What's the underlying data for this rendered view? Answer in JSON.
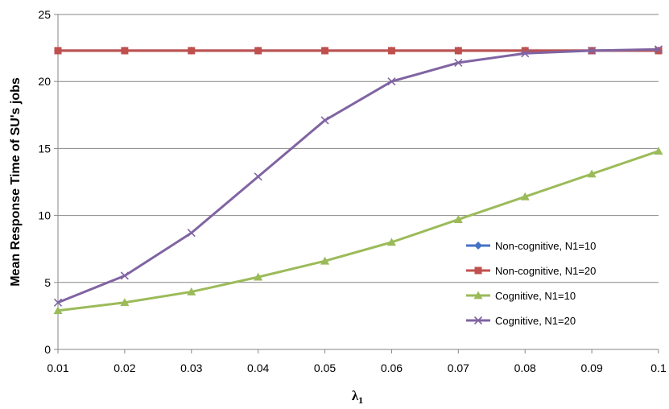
{
  "chart_data": {
    "type": "line",
    "title": "",
    "xlabel": "λ",
    "xlabel_subscript": "1",
    "ylabel": "Mean Response Time of SU's jobs",
    "ylim": [
      0,
      25
    ],
    "yticks": [
      0,
      5,
      10,
      15,
      20,
      25
    ],
    "x": [
      0.01,
      0.02,
      0.03,
      0.04,
      0.05,
      0.06,
      0.07,
      0.08,
      0.09,
      0.1
    ],
    "x_labels": [
      "0.01",
      "0.02",
      "0.03",
      "0.04",
      "0.05",
      "0.06",
      "0.07",
      "0.08",
      "0.09",
      "0.1"
    ],
    "grid": "horizontal",
    "legend_position": "right",
    "series": [
      {
        "name": "Non-cognitive, N1=10",
        "color": "#4472C4",
        "marker": "diamond",
        "values": [
          22.3,
          22.3,
          22.3,
          22.3,
          22.3,
          22.3,
          22.3,
          22.3,
          22.3,
          22.3
        ]
      },
      {
        "name": "Non-cognitive, N1=20",
        "color": "#C0504D",
        "marker": "square",
        "values": [
          22.3,
          22.3,
          22.3,
          22.3,
          22.3,
          22.3,
          22.3,
          22.3,
          22.3,
          22.3
        ]
      },
      {
        "name": "Cognitive, N1=10",
        "color": "#9BBB59",
        "marker": "triangle",
        "values": [
          2.9,
          3.5,
          4.3,
          5.4,
          6.6,
          8.0,
          9.7,
          11.4,
          13.1,
          14.8
        ]
      },
      {
        "name": "Cognitive, N1=20",
        "color": "#8064A2",
        "marker": "x",
        "values": [
          3.5,
          5.5,
          8.7,
          12.9,
          17.1,
          20.0,
          21.4,
          22.1,
          22.3,
          22.4
        ]
      }
    ]
  }
}
